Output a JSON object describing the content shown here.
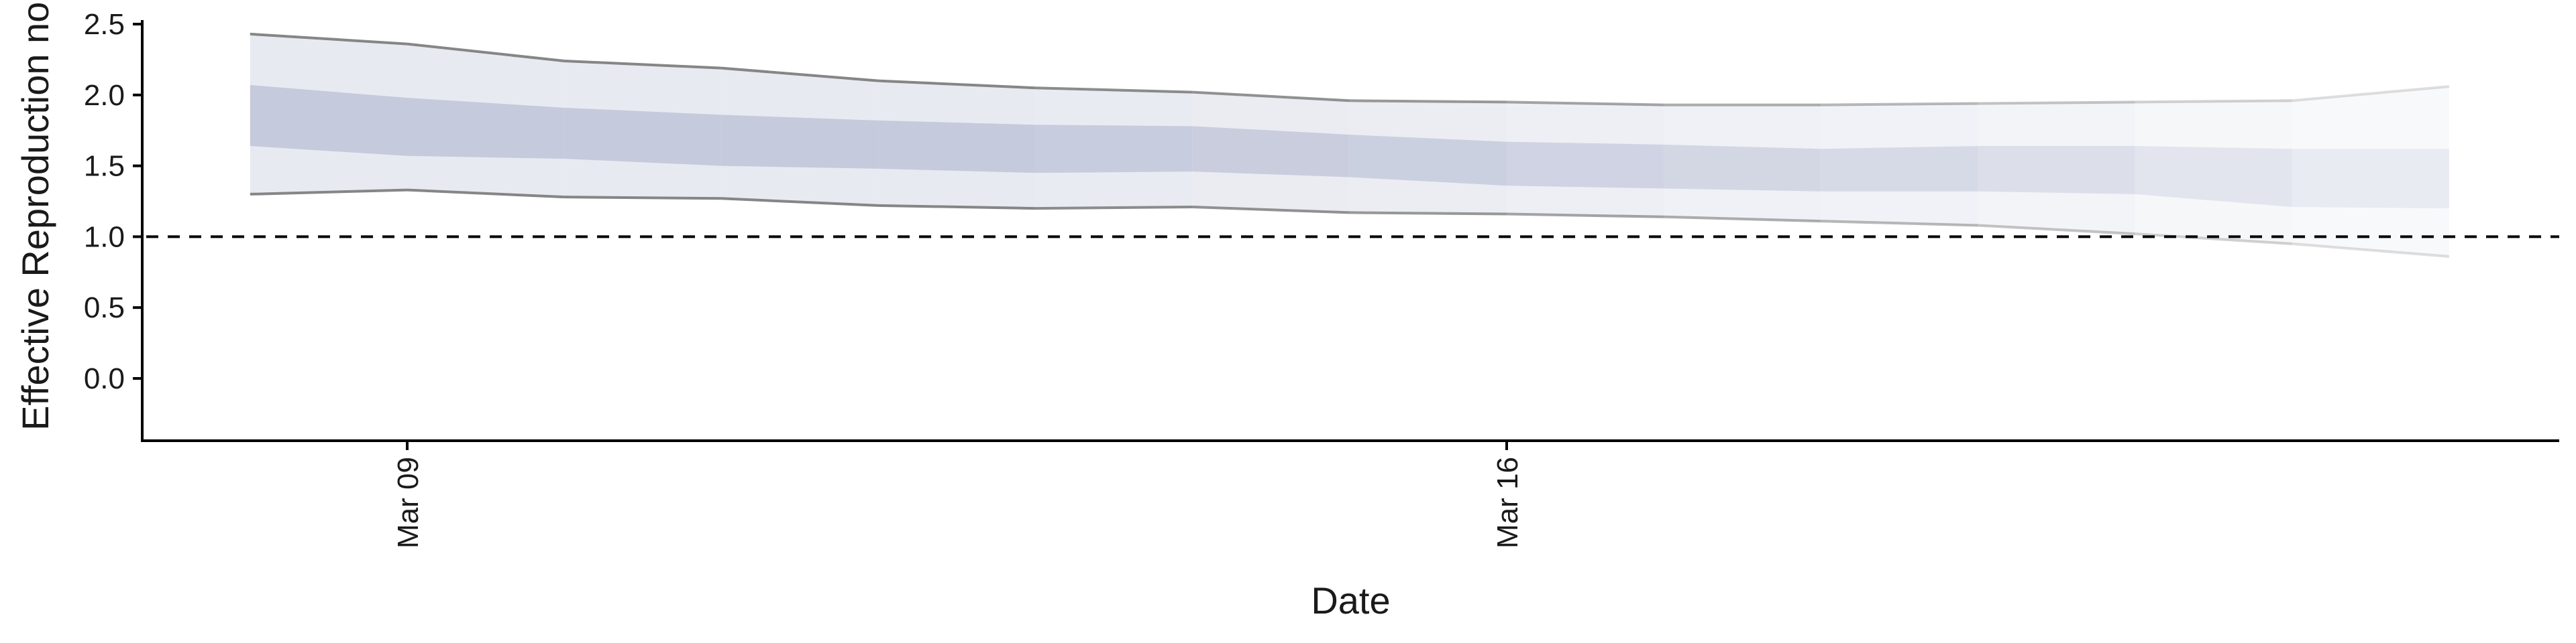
{
  "chart_data": {
    "type": "area",
    "xlabel": "Date",
    "ylabel": "Effective Reproduction no.",
    "x_tick_labels": [
      {
        "date": "2020-03-09",
        "label": "Mar 09"
      },
      {
        "date": "2020-03-16",
        "label": "Mar 16"
      }
    ],
    "y_ticks": [
      0.0,
      0.5,
      1.0,
      1.5,
      2.0,
      2.5
    ],
    "ylim": [
      0,
      2.5
    ],
    "reference_line": {
      "y": 1.0,
      "style": "dashed"
    },
    "grid": false,
    "series": [
      {
        "x": [
          "2020-03-08",
          "2020-03-09",
          "2020-03-10",
          "2020-03-11",
          "2020-03-12",
          "2020-03-13",
          "2020-03-14",
          "2020-03-15",
          "2020-03-16",
          "2020-03-17",
          "2020-03-18",
          "2020-03-19",
          "2020-03-20",
          "2020-03-21",
          "2020-03-22"
        ],
        "ci90_upper": [
          2.43,
          2.36,
          2.24,
          2.19,
          2.1,
          2.05,
          2.02,
          1.96,
          1.95,
          1.93,
          1.93,
          1.94,
          1.95,
          1.96,
          2.06
        ],
        "ci90_lower": [
          1.3,
          1.33,
          1.28,
          1.27,
          1.22,
          1.2,
          1.21,
          1.17,
          1.16,
          1.14,
          1.11,
          1.08,
          1.02,
          0.95,
          0.86
        ],
        "ci50_upper": [
          2.07,
          1.98,
          1.91,
          1.86,
          1.82,
          1.79,
          1.78,
          1.72,
          1.67,
          1.65,
          1.62,
          1.64,
          1.64,
          1.62,
          1.62
        ],
        "ci50_lower": [
          1.64,
          1.57,
          1.55,
          1.5,
          1.48,
          1.45,
          1.46,
          1.42,
          1.36,
          1.34,
          1.32,
          1.32,
          1.3,
          1.21,
          1.2
        ],
        "band_opacity": [
          1.0,
          1.0,
          1.0,
          1.0,
          1.0,
          0.95,
          0.9,
          0.85,
          0.75,
          0.68,
          0.6,
          0.5,
          0.4,
          0.3,
          0.22
        ]
      }
    ],
    "colors": {
      "band_outer": "#e8eaf1",
      "band_inner": "#c5cadc",
      "bound_line": "#7f7f7f",
      "axis": "#000000"
    }
  }
}
